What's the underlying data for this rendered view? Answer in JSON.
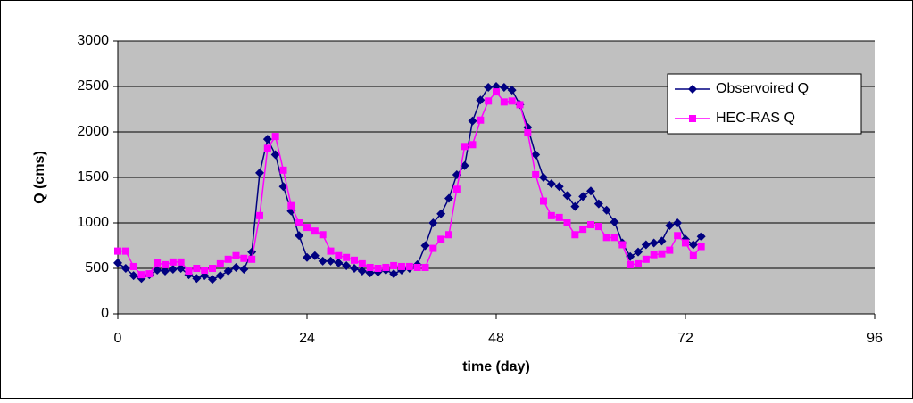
{
  "chart_data": {
    "type": "line",
    "x_label": "time (day)",
    "y_label": "Q (cms)",
    "x": [
      0,
      1,
      2,
      3,
      4,
      5,
      6,
      7,
      8,
      9,
      10,
      11,
      12,
      13,
      14,
      15,
      16,
      17,
      18,
      19,
      20,
      21,
      22,
      23,
      24,
      25,
      26,
      27,
      28,
      29,
      30,
      31,
      32,
      33,
      34,
      35,
      36,
      37,
      38,
      39,
      40,
      41,
      42,
      43,
      44,
      45,
      46,
      47,
      48,
      49,
      50,
      51,
      52,
      53,
      54,
      55,
      56,
      57,
      58,
      59,
      60,
      61,
      62,
      63,
      64,
      65,
      66,
      67,
      68,
      69,
      70,
      71,
      72,
      73,
      74
    ],
    "series": [
      {
        "name": "Observoired Q",
        "color": "#000080",
        "marker": "diamond",
        "values": [
          560,
          500,
          420,
          390,
          430,
          480,
          470,
          490,
          500,
          430,
          390,
          420,
          380,
          420,
          470,
          510,
          490,
          680,
          1550,
          1920,
          1750,
          1400,
          1130,
          860,
          620,
          640,
          580,
          580,
          560,
          530,
          500,
          470,
          450,
          460,
          480,
          440,
          480,
          500,
          540,
          750,
          1000,
          1100,
          1270,
          1530,
          1630,
          2120,
          2350,
          2490,
          2500,
          2490,
          2460,
          2300,
          2050,
          1750,
          1500,
          1430,
          1400,
          1300,
          1180,
          1290,
          1350,
          1210,
          1140,
          1010,
          780,
          630,
          680,
          760,
          780,
          800,
          970,
          1000,
          820,
          760,
          850
        ]
      },
      {
        "name": "HEC-RAS Q",
        "color": "#ff00ff",
        "marker": "square",
        "values": [
          690,
          690,
          520,
          430,
          440,
          560,
          540,
          570,
          570,
          470,
          500,
          480,
          500,
          550,
          600,
          640,
          610,
          600,
          1080,
          1820,
          1950,
          1580,
          1190,
          1000,
          950,
          910,
          870,
          690,
          640,
          620,
          590,
          550,
          510,
          500,
          510,
          530,
          520,
          520,
          510,
          510,
          720,
          820,
          870,
          1370,
          1840,
          1860,
          2130,
          2340,
          2440,
          2330,
          2340,
          2300,
          1990,
          1530,
          1240,
          1080,
          1060,
          1000,
          870,
          930,
          980,
          960,
          840,
          840,
          760,
          540,
          550,
          600,
          650,
          660,
          700,
          860,
          780,
          640,
          740
        ]
      }
    ],
    "xlim": [
      0,
      96
    ],
    "xticks": [
      0,
      24,
      48,
      72,
      96
    ],
    "ylim": [
      0,
      3000
    ],
    "yticks": [
      0,
      500,
      1000,
      1500,
      2000,
      2500,
      3000
    ],
    "grid": true,
    "legend": "upper right",
    "plot_background": "#c0c0c0"
  }
}
